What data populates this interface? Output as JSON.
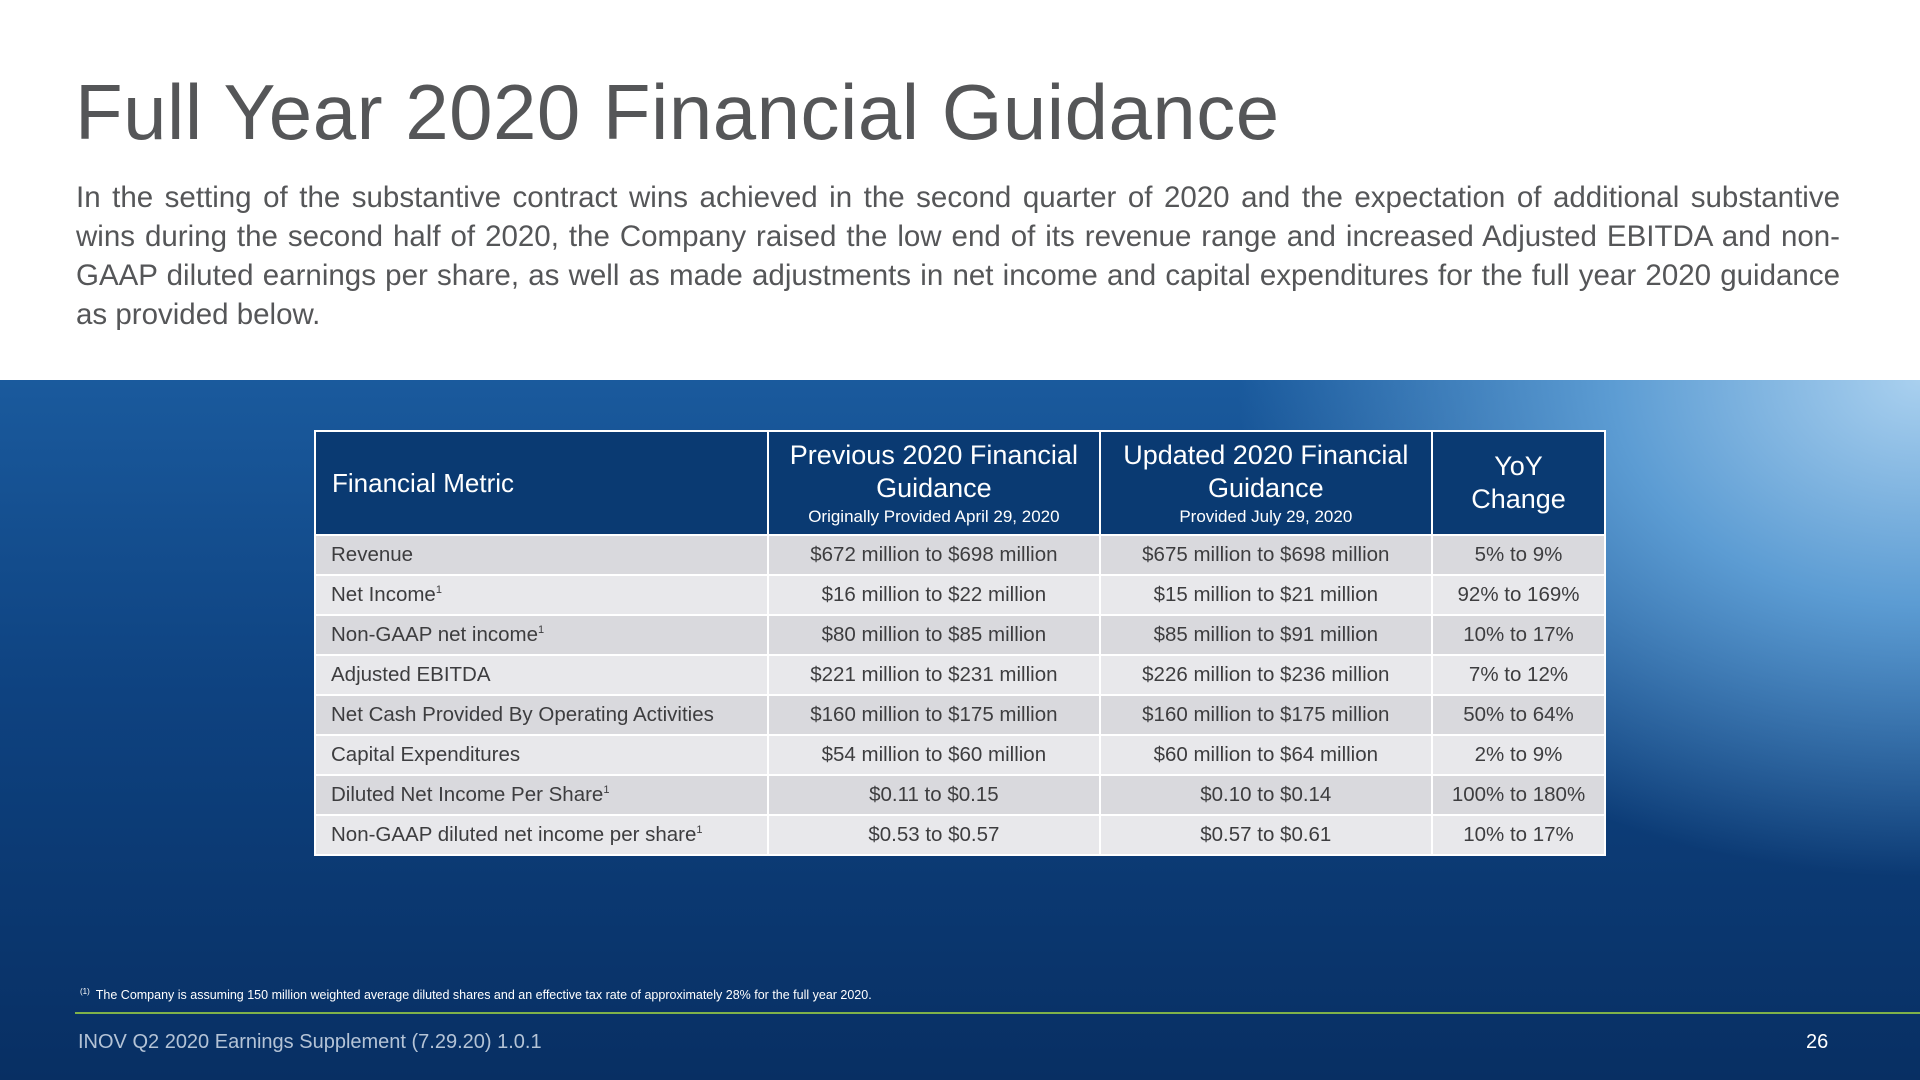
{
  "slide": {
    "title": "Full Year 2020 Financial Guidance",
    "intro": "In the setting of the substantive contract wins achieved in the second quarter of 2020 and the expectation of additional substantive wins during the second half of 2020, the Company raised the low end of its revenue range and increased Adjusted EBITDA and non-GAAP diluted earnings per share, as well as made adjustments in net income and capital expenditures for the full year 2020 guidance as provided below."
  },
  "table": {
    "headers": {
      "metric": "Financial Metric",
      "previous": "Previous 2020 Financial Guidance",
      "previous_sub": "Originally Provided April 29, 2020",
      "updated": "Updated 2020 Financial Guidance",
      "updated_sub": "Provided July 29, 2020",
      "yoy": "YoY Change"
    },
    "rows": [
      {
        "metric": "Revenue",
        "note": "",
        "previous": "$672 million to $698 million",
        "updated": "$675 million to $698 million",
        "yoy": "5% to 9%"
      },
      {
        "metric": "Net Income",
        "note": "1",
        "previous": "$16 million to $22 million",
        "updated": "$15 million to $21 million",
        "yoy": "92% to 169%"
      },
      {
        "metric": "Non-GAAP net income",
        "note": "1",
        "previous": "$80 million to $85 million",
        "updated": "$85 million to $91 million",
        "yoy": "10% to 17%"
      },
      {
        "metric": "Adjusted EBITDA",
        "note": "",
        "previous": "$221 million to $231 million",
        "updated": "$226 million to $236 million",
        "yoy": "7% to 12%"
      },
      {
        "metric": "Net Cash Provided By Operating Activities",
        "note": "",
        "previous": "$160 million to $175 million",
        "updated": "$160 million to $175 million",
        "yoy": "50% to 64%"
      },
      {
        "metric": "Capital Expenditures",
        "note": "",
        "previous": "$54 million to $60 million",
        "updated": "$60 million to $64 million",
        "yoy": "2% to 9%"
      },
      {
        "metric": "Diluted Net Income Per Share",
        "note": "1",
        "previous": "$0.11 to $0.15",
        "updated": "$0.10 to $0.14",
        "yoy": "100% to 180%"
      },
      {
        "metric": "Non-GAAP diluted net income per share",
        "note": "1",
        "previous": "$0.53 to $0.57",
        "updated": "$0.57 to $0.61",
        "yoy": "10% to 17%"
      }
    ]
  },
  "footnote": {
    "marker": "(1)",
    "text": "The Company is assuming 150 million weighted average diluted shares and an effective tax rate of approximately 28% for the full year 2020."
  },
  "footer": {
    "left": "INOV Q2 2020 Earnings Supplement (7.29.20) 1.0.1",
    "page_number": "26"
  },
  "colors": {
    "title_text": "#555658",
    "header_bg": "#0a3a72",
    "row_odd": "#d9d9dd",
    "row_even": "#e8e8eb",
    "accent_rule": "#7fb24a"
  }
}
